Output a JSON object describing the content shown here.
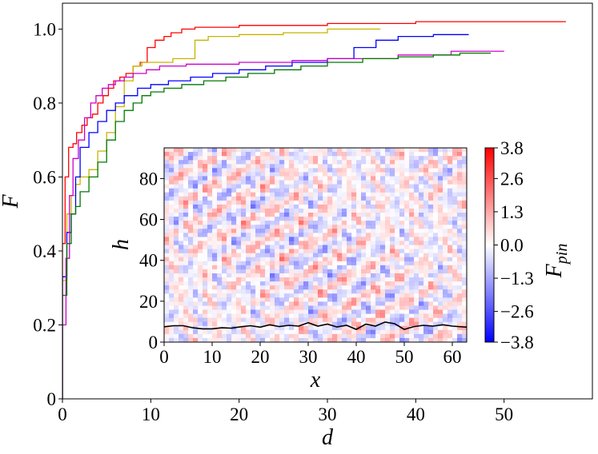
{
  "chart_data": [
    {
      "type": "line",
      "xlabel": "d",
      "ylabel": "F",
      "xlim": [
        0,
        60
      ],
      "ylim": [
        0,
        1.07
      ],
      "xticks": [
        0,
        10,
        20,
        30,
        40,
        50
      ],
      "yticks": [
        0,
        0.2,
        0.4,
        0.6,
        0.8,
        1.0
      ],
      "xtick_labels": [
        "0",
        "10",
        "20",
        "30",
        "40",
        "50"
      ],
      "ytick_labels": [
        "0",
        "0.2",
        "0.4",
        "0.6",
        "0.8",
        "1.0"
      ],
      "series": [
        {
          "name": "red",
          "color": "#ff0000",
          "x": [
            0,
            0.3,
            0.7,
            1.2,
            1.6,
            2.2,
            2.8,
            3.4,
            4.0,
            4.6,
            5.2,
            5.8,
            6.5,
            7.2,
            8.0,
            8.8,
            9.6,
            10.5,
            11.5,
            12.3,
            13.5,
            15.0,
            20,
            30,
            40,
            50,
            57
          ],
          "y": [
            0,
            0.42,
            0.6,
            0.68,
            0.69,
            0.72,
            0.74,
            0.76,
            0.77,
            0.8,
            0.82,
            0.84,
            0.86,
            0.87,
            0.88,
            0.9,
            0.91,
            0.95,
            0.97,
            0.98,
            0.99,
            1.0,
            1.005,
            1.01,
            1.015,
            1.02,
            1.02
          ]
        },
        {
          "name": "yellow",
          "color": "#c8b400",
          "x": [
            0,
            0.5,
            1.0,
            1.5,
            2.0,
            3.0,
            4.0,
            5.0,
            6.0,
            7.0,
            8.0,
            9.0,
            10.0,
            11.0,
            12.5,
            15.0,
            16.5,
            20,
            25,
            30,
            36
          ],
          "y": [
            0,
            0.32,
            0.5,
            0.55,
            0.58,
            0.6,
            0.62,
            0.67,
            0.72,
            0.79,
            0.86,
            0.9,
            0.91,
            0.91,
            0.91,
            0.92,
            0.97,
            0.98,
            0.985,
            0.99,
            1.0
          ]
        },
        {
          "name": "blue",
          "color": "#0000ff",
          "x": [
            0,
            0.5,
            1.0,
            1.5,
            2.0,
            3.0,
            4.0,
            5.0,
            6.0,
            7.0,
            8.5,
            10.0,
            12.0,
            14.5,
            17.0,
            20.0,
            23.0,
            26.0,
            30.0,
            33.0,
            35.5,
            38.0,
            42.0,
            46.0
          ],
          "y": [
            0,
            0.33,
            0.45,
            0.5,
            0.6,
            0.68,
            0.72,
            0.75,
            0.78,
            0.8,
            0.82,
            0.84,
            0.85,
            0.86,
            0.87,
            0.88,
            0.89,
            0.9,
            0.91,
            0.92,
            0.95,
            0.97,
            0.98,
            0.985
          ]
        },
        {
          "name": "magenta",
          "color": "#cc00cc",
          "x": [
            0,
            0.4,
            0.8,
            1.2,
            1.8,
            2.5,
            3.2,
            3.8,
            4.5,
            5.2,
            6.0,
            7.0,
            8.0,
            9.5,
            11.0,
            14.0,
            20.0,
            26.0,
            30.0,
            38.0,
            44.0,
            50.0
          ],
          "y": [
            0,
            0.2,
            0.38,
            0.55,
            0.65,
            0.7,
            0.76,
            0.8,
            0.82,
            0.84,
            0.85,
            0.86,
            0.87,
            0.88,
            0.89,
            0.9,
            0.905,
            0.91,
            0.915,
            0.92,
            0.93,
            0.94
          ]
        },
        {
          "name": "green",
          "color": "#007a00",
          "x": [
            0,
            0.5,
            1.0,
            1.5,
            2.0,
            3.0,
            4.0,
            5.0,
            6.0,
            7.0,
            8.0,
            9.0,
            10.0,
            11.5,
            13.5,
            16.0,
            18.5,
            21.0,
            24.0,
            27.0,
            30.0,
            34.0,
            38.0,
            42.0,
            45.0,
            47.5,
            48.5
          ],
          "y": [
            0,
            0.28,
            0.42,
            0.5,
            0.52,
            0.56,
            0.6,
            0.64,
            0.7,
            0.75,
            0.78,
            0.8,
            0.82,
            0.83,
            0.84,
            0.85,
            0.86,
            0.87,
            0.88,
            0.89,
            0.9,
            0.91,
            0.92,
            0.925,
            0.93,
            0.935,
            0.935
          ]
        }
      ]
    },
    {
      "type": "heatmap",
      "xlabel": "x",
      "ylabel": "h",
      "xlim": [
        0,
        63
      ],
      "ylim": [
        0,
        95
      ],
      "xticks": [
        0,
        10,
        20,
        30,
        40,
        50,
        60
      ],
      "yticks": [
        0,
        20,
        40,
        60,
        80
      ],
      "xtick_labels": [
        "0",
        "10",
        "20",
        "30",
        "40",
        "50",
        "60"
      ],
      "ytick_labels": [
        "0",
        "20",
        "40",
        "60",
        "80"
      ],
      "colorbar": {
        "label": "F_pin",
        "label_main": "F",
        "label_sub": "pin",
        "range": [
          -3.8,
          3.8
        ],
        "ticks": [
          3.8,
          2.6,
          1.3,
          0.0,
          -1.3,
          -2.6,
          -3.8
        ],
        "tick_labels": [
          "3.8",
          "2.6",
          "1.3",
          "0.0",
          "−1.3",
          "−2.6",
          "−3.8"
        ],
        "colormap": "bwr",
        "color_high": "#ff0000",
        "color_mid": "#ffffff",
        "color_low": "#0000ff"
      },
      "interface_line": {
        "color": "#000000",
        "x": [
          0,
          2,
          4,
          6,
          8,
          10,
          12,
          14,
          16,
          18,
          20,
          22,
          24,
          26,
          28,
          30,
          32,
          34,
          36,
          38,
          40,
          42,
          44,
          46,
          48,
          50,
          52,
          54,
          56,
          58,
          60,
          63
        ],
        "y": [
          7.5,
          8,
          8,
          7,
          6.5,
          6.5,
          7,
          6.8,
          7.5,
          8,
          7.3,
          8.5,
          7.6,
          8.2,
          7.8,
          9.5,
          7.8,
          8.8,
          7.4,
          8.2,
          6.2,
          8.8,
          7.8,
          9.8,
          9,
          6.2,
          7.6,
          8.2,
          7.8,
          8.5,
          7.8,
          7.3
        ]
      }
    }
  ]
}
